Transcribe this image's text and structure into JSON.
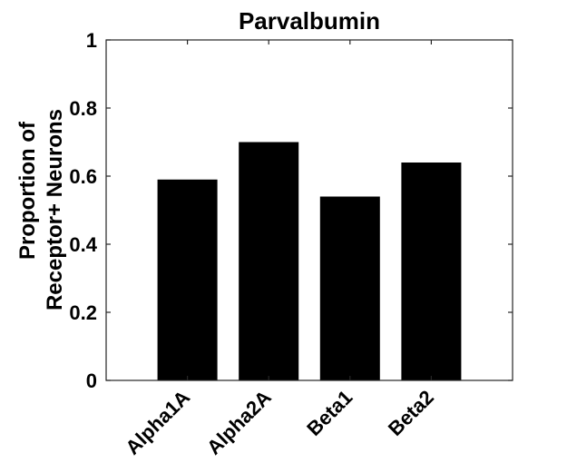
{
  "chart_data": {
    "type": "bar",
    "title": "Parvalbumin",
    "ylabel_lines": [
      "Proportion of",
      "Receptor+ Neurons"
    ],
    "xlabel": "",
    "categories": [
      "Alpha1A",
      "Alpha2A",
      "Beta1",
      "Beta2"
    ],
    "values": [
      0.59,
      0.7,
      0.54,
      0.64
    ],
    "ylim": [
      0,
      1
    ],
    "yticks": [
      "0",
      "0.2",
      "0.4",
      "0.6",
      "0.8",
      "1"
    ],
    "grid": false,
    "bar_color": "#000000"
  }
}
